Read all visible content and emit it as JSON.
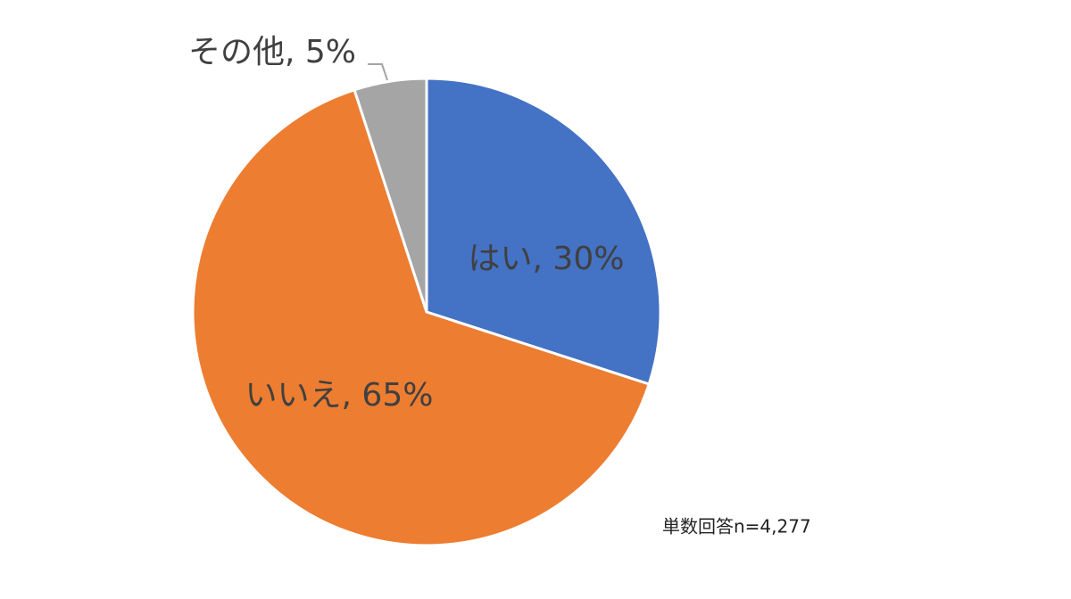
{
  "chart_data": {
    "type": "pie",
    "values": [
      30,
      65,
      5
    ],
    "value_labels": [
      "はい, 30%",
      "いいえ, 65%",
      "その他, 5%"
    ],
    "colors": [
      "#4472c4",
      "#ed7d31",
      "#a5a5a5"
    ],
    "annotation": "単数回答n=4,277"
  }
}
